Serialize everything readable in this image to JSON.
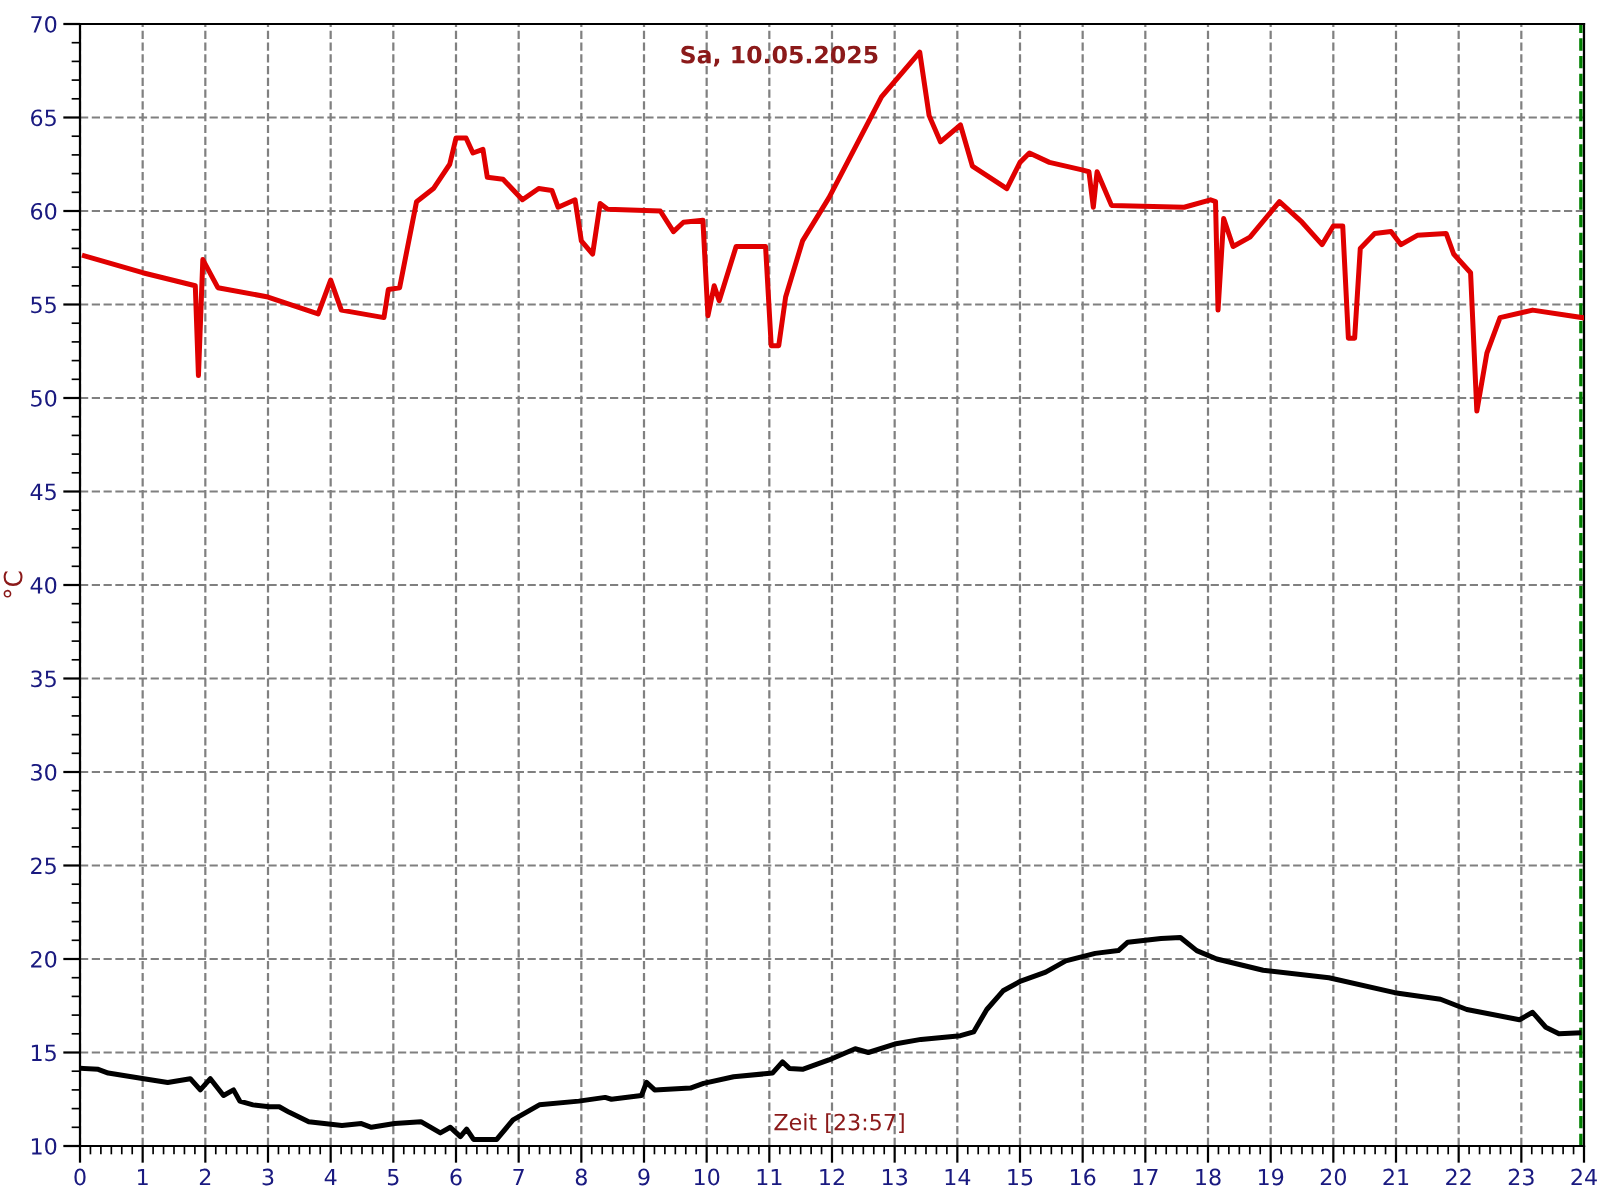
{
  "chart_data": {
    "type": "line",
    "title": "Sa, 10.05.2025",
    "xlabel": "Zeit [23:57]",
    "ylabel": "°C",
    "xlim": [
      0,
      24
    ],
    "xticks": [
      0,
      1,
      2,
      3,
      4,
      5,
      6,
      7,
      8,
      9,
      10,
      11,
      12,
      13,
      14,
      15,
      16,
      17,
      18,
      19,
      20,
      21,
      22,
      23,
      24
    ],
    "ylim": [
      10,
      70
    ],
    "yticks": [
      10,
      15,
      20,
      25,
      30,
      35,
      40,
      45,
      50,
      55,
      60,
      65,
      70
    ],
    "grid": true,
    "legend": false,
    "marker": "none",
    "line_style": "solid",
    "ref_lines": [
      {
        "axis": "x",
        "value": 23.95,
        "color": "#008000",
        "line_style": "dashed"
      }
    ],
    "series": [
      {
        "color": "#e00000",
        "x": [
          0.07,
          1.0,
          1.84,
          1.89,
          1.96,
          2.2,
          3.0,
          3.8,
          4.0,
          4.17,
          4.85,
          4.92,
          5.1,
          5.37,
          5.64,
          5.9,
          6.0,
          6.16,
          6.27,
          6.43,
          6.5,
          6.75,
          7.06,
          7.32,
          7.53,
          7.63,
          7.9,
          8.0,
          8.18,
          8.3,
          8.42,
          9.26,
          9.47,
          9.63,
          9.94,
          10.02,
          10.12,
          10.2,
          10.47,
          10.94,
          11.03,
          11.15,
          11.26,
          11.53,
          11.95,
          12.79,
          13.4,
          13.55,
          13.73,
          14.05,
          14.24,
          14.79,
          15.0,
          15.15,
          15.47,
          15.99,
          16.1,
          16.17,
          16.23,
          16.46,
          17.62,
          18.04,
          18.12,
          18.16,
          18.25,
          18.4,
          18.67,
          19.14,
          19.5,
          19.82,
          20.0,
          20.15,
          20.24,
          20.34,
          20.43,
          20.66,
          20.92,
          21.08,
          21.34,
          21.8,
          21.92,
          22.19,
          22.29,
          22.45,
          22.66,
          23.18,
          23.97
        ],
        "values": [
          57.6,
          56.7,
          56.0,
          51.2,
          57.4,
          55.9,
          55.4,
          54.5,
          56.3,
          54.7,
          54.3,
          55.8,
          55.9,
          60.5,
          61.2,
          62.5,
          63.9,
          63.9,
          63.1,
          63.3,
          61.8,
          61.7,
          60.6,
          61.2,
          61.1,
          60.2,
          60.6,
          58.4,
          57.7,
          60.4,
          60.1,
          60.0,
          58.9,
          59.4,
          59.5,
          54.4,
          56.0,
          55.2,
          58.1,
          58.1,
          52.8,
          52.8,
          55.4,
          58.4,
          60.7,
          66.1,
          68.5,
          65.1,
          63.7,
          64.6,
          62.4,
          61.2,
          62.6,
          63.1,
          62.6,
          62.2,
          62.1,
          60.2,
          62.1,
          60.3,
          60.2,
          60.6,
          60.5,
          54.7,
          59.6,
          58.1,
          58.6,
          60.5,
          59.4,
          58.2,
          59.2,
          59.2,
          53.2,
          53.2,
          58.0,
          58.8,
          58.9,
          58.2,
          58.7,
          58.8,
          57.7,
          56.7,
          49.3,
          52.4,
          54.3,
          54.7,
          54.3
        ]
      },
      {
        "color": "#000000",
        "x": [
          0.05,
          0.29,
          0.45,
          1.02,
          1.4,
          1.76,
          1.92,
          2.08,
          2.29,
          2.45,
          2.55,
          2.76,
          3.02,
          3.18,
          3.34,
          3.65,
          4.18,
          4.49,
          4.65,
          5.02,
          5.44,
          5.75,
          5.91,
          6.07,
          6.17,
          6.28,
          6.65,
          6.91,
          7.33,
          7.96,
          8.38,
          8.48,
          8.96,
          9.04,
          9.17,
          9.74,
          9.95,
          10.43,
          11.05,
          11.21,
          11.32,
          11.53,
          11.95,
          12.37,
          12.58,
          13.0,
          13.42,
          14.05,
          14.26,
          14.47,
          14.73,
          15.0,
          15.41,
          15.73,
          16.2,
          16.57,
          16.72,
          17.25,
          17.56,
          17.82,
          18.14,
          18.88,
          19.93,
          20.98,
          21.71,
          22.13,
          22.97,
          23.18,
          23.39,
          23.6,
          23.92
        ],
        "values": [
          14.15,
          14.1,
          13.9,
          13.6,
          13.4,
          13.6,
          13.0,
          13.6,
          12.7,
          13.0,
          12.4,
          12.2,
          12.1,
          12.1,
          11.8,
          11.3,
          11.1,
          11.2,
          11.0,
          11.2,
          11.3,
          10.7,
          11.0,
          10.5,
          10.9,
          10.35,
          10.35,
          11.4,
          12.2,
          12.4,
          12.6,
          12.5,
          12.7,
          13.4,
          13.0,
          13.1,
          13.35,
          13.7,
          13.9,
          14.5,
          14.15,
          14.1,
          14.6,
          15.2,
          15.0,
          15.45,
          15.7,
          15.9,
          16.1,
          17.3,
          18.3,
          18.8,
          19.3,
          19.9,
          20.3,
          20.45,
          20.9,
          21.1,
          21.15,
          20.45,
          20.0,
          19.4,
          19.0,
          18.2,
          17.85,
          17.3,
          16.75,
          17.15,
          16.35,
          16.0,
          16.05
        ]
      }
    ]
  }
}
